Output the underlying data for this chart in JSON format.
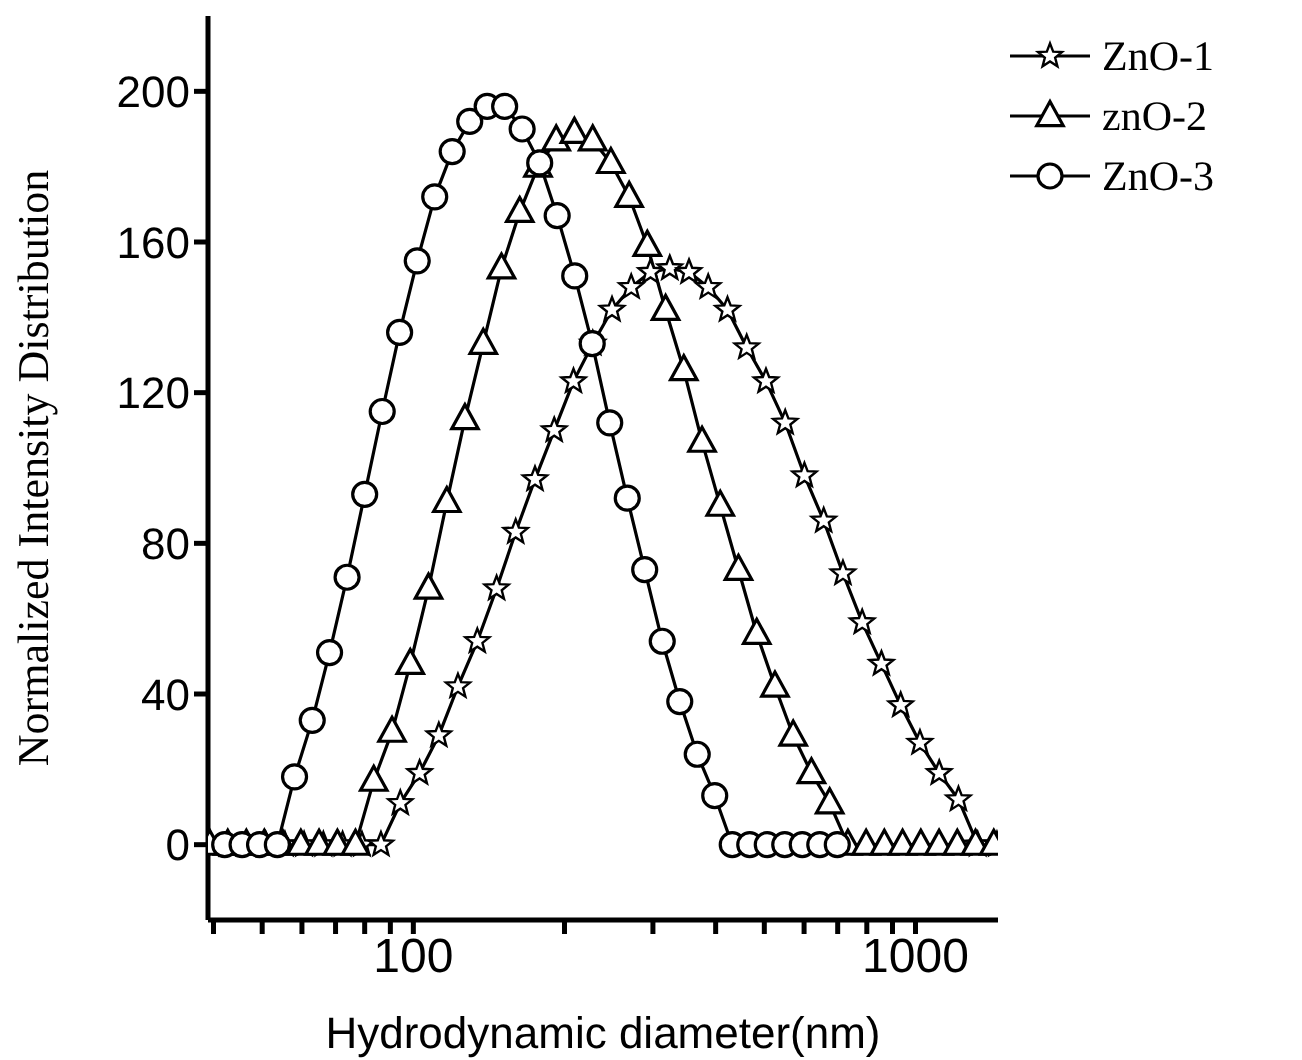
{
  "chart_data": {
    "type": "line",
    "xlabel": "Hydrodynamic diameter(nm)",
    "ylabel": "Normalized Intensity Distribution",
    "log": "x",
    "xlim": [
      39,
      1460
    ],
    "ylim": [
      -20,
      220
    ],
    "xticks": [
      {
        "value": 40,
        "label": null
      },
      {
        "value": 50,
        "label": null
      },
      {
        "value": 60,
        "label": null
      },
      {
        "value": 70,
        "label": null
      },
      {
        "value": 80,
        "label": null
      },
      {
        "value": 90,
        "label": null
      },
      100,
      {
        "value": 200,
        "label": null
      },
      {
        "value": 300,
        "label": null
      },
      {
        "value": 400,
        "label": null
      },
      {
        "value": 500,
        "label": null
      },
      {
        "value": 600,
        "label": null
      },
      {
        "value": 700,
        "label": null
      },
      {
        "value": 800,
        "label": null
      },
      {
        "value": 900,
        "label": null
      },
      1000
    ],
    "yticks": [
      0,
      40,
      80,
      120,
      160,
      200
    ],
    "grid": false,
    "legend": "top right",
    "line_style": "solid",
    "series": [
      {
        "name": "ZnO-1",
        "color": "#000000",
        "marker": "star",
        "x": [
          42.6,
          46.5,
          50.8,
          55.5,
          60.6,
          66.2,
          72.3,
          79.0,
          86.2,
          94.2,
          102.9,
          112.4,
          122.7,
          134.1,
          146.5,
          159.9,
          174.7,
          190.8,
          208.4,
          227.7,
          248.7,
          271.6,
          296.7,
          324.1,
          354.0,
          386.6,
          422.3,
          461.2,
          503.8,
          550.3,
          601.0,
          656.5,
          717.1,
          783.3,
          855.5,
          934.5,
          1020.8,
          1115.0,
          1217.9,
          1330.2,
          1453
        ],
        "values": [
          0,
          0,
          0,
          0,
          0,
          0,
          0,
          0,
          0,
          11,
          19,
          29,
          42,
          54,
          68,
          83,
          97,
          110,
          123,
          133,
          142,
          148,
          152,
          153,
          152,
          148,
          142,
          132,
          123,
          112,
          98,
          86,
          72,
          59,
          48,
          37,
          27,
          19,
          12,
          0,
          0
        ]
      },
      {
        "name": "znO-2",
        "color": "#000000",
        "marker": "triangle",
        "x": [
          39.3,
          42.7,
          46.5,
          50.5,
          54.9,
          59.7,
          64.9,
          70.6,
          76.7,
          83.4,
          90.7,
          98.6,
          107.2,
          116.6,
          126.7,
          137.8,
          149.8,
          162.9,
          177.1,
          192.5,
          209.3,
          227.6,
          247.4,
          269.0,
          292.4,
          317.9,
          345.6,
          375.8,
          408.5,
          444.1,
          482.9,
          525.0,
          570.8,
          620.6,
          674.7,
          733.5,
          797.5,
          867.0,
          942.6,
          1024.9,
          1114.3,
          1211.5,
          1317.1,
          1432.0
        ],
        "values": [
          0,
          0,
          0,
          0,
          0,
          0,
          0,
          0,
          0,
          17,
          30,
          48,
          68,
          91,
          113,
          133,
          153,
          168,
          180,
          187,
          189,
          187,
          181,
          172,
          159,
          142,
          126,
          107,
          90,
          73,
          56,
          42,
          29,
          19,
          11,
          0,
          0,
          0,
          0,
          0,
          0,
          0,
          0,
          0
        ]
      },
      {
        "name": "ZnO-3",
        "color": "#000000",
        "marker": "circle",
        "x": [
          42.1,
          45.6,
          49.4,
          53.6,
          58.0,
          62.9,
          68.1,
          73.8,
          80.0,
          86.7,
          93.9,
          101.8,
          110.3,
          119.5,
          129.5,
          140.3,
          152.0,
          164.7,
          178.5,
          193.4,
          209.6,
          227.1,
          246.1,
          266.7,
          288.9,
          313.1,
          339.3,
          367.6,
          398.3,
          431.6,
          467.7,
          506.8,
          549.1,
          595.0,
          644.8,
          698.7
        ],
        "values": [
          0,
          0,
          0,
          0,
          18,
          33,
          51,
          71,
          93,
          115,
          136,
          155,
          172,
          184,
          192,
          196,
          196,
          190,
          181,
          167,
          151,
          133,
          112,
          92,
          73,
          54,
          38,
          24,
          13,
          0,
          0,
          0,
          0,
          0,
          0,
          0
        ]
      }
    ]
  }
}
